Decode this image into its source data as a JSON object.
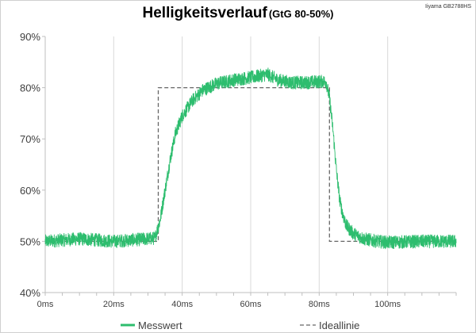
{
  "chart_data": {
    "type": "line",
    "title": "Helligkeitsverlauf",
    "subtitle": "(GtG 80-50%)",
    "corner_label": "Iiyama GB2788HS",
    "xlabel": "",
    "ylabel": "",
    "xlim": [
      0,
      120
    ],
    "ylim": [
      40,
      90
    ],
    "x_ticks": [
      "0ms",
      "20ms",
      "40ms",
      "60ms",
      "80ms",
      "100ms"
    ],
    "x_tick_values": [
      0,
      20,
      40,
      60,
      80,
      100
    ],
    "y_ticks": [
      "40%",
      "50%",
      "60%",
      "70%",
      "80%",
      "90%"
    ],
    "y_tick_values": [
      40,
      50,
      60,
      70,
      80,
      90
    ],
    "grid": "vertical",
    "legend_position": "bottom",
    "series": [
      {
        "name": "Messwert",
        "color": "#2dbd6e",
        "style": "solid-noisy",
        "x": [
          0,
          10,
          20,
          32,
          33.5,
          35,
          36.5,
          38,
          40,
          43,
          46,
          50,
          55,
          60,
          65,
          68,
          72,
          76,
          80,
          82,
          83,
          84,
          85,
          86,
          87,
          88,
          90,
          93,
          97,
          100,
          110,
          120
        ],
        "values": [
          50,
          50.5,
          50,
          50.6,
          54,
          60,
          66,
          71,
          74.5,
          77.5,
          79.5,
          80.8,
          81.5,
          82,
          82.6,
          81.5,
          81,
          81,
          81.2,
          81.2,
          78,
          72,
          64,
          58,
          55,
          53,
          51.5,
          50.5,
          50,
          49.8,
          50,
          50
        ]
      },
      {
        "name": "Ideallinie",
        "color": "#666666",
        "style": "dashed",
        "x": [
          0,
          33,
          33,
          83,
          83,
          120
        ],
        "values": [
          50,
          50,
          80,
          80,
          50,
          50
        ]
      }
    ]
  }
}
